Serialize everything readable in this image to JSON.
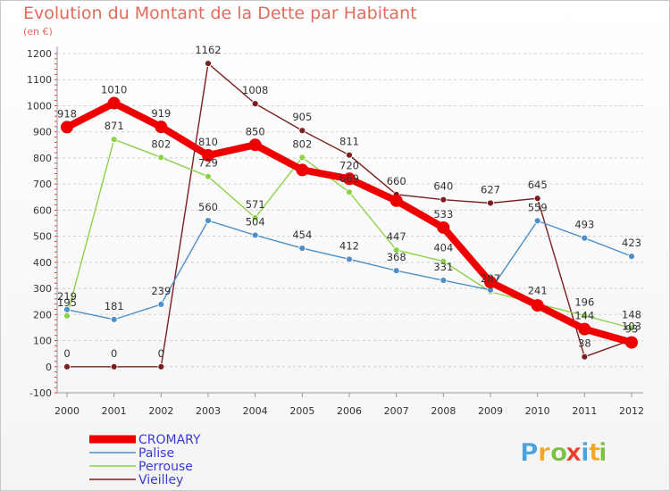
{
  "title": "Evolution du Montant de la Dette par Habitant",
  "subtitle": "(en €)",
  "brand": {
    "letters": [
      "P",
      "r",
      "o",
      "x",
      "i",
      "t",
      "i"
    ],
    "colors": [
      "#4aa3df",
      "#f5a623",
      "#7bc142",
      "#e8402a",
      "#4aa3df",
      "#f5a623",
      "#7bc142"
    ]
  },
  "chart_data": {
    "type": "line",
    "title": "Evolution du Montant de la Dette par Habitant",
    "subtitle": "(en €)",
    "x": [
      "2000",
      "2001",
      "2002",
      "2003",
      "2004",
      "2005",
      "2006",
      "2007",
      "2008",
      "2009",
      "2010",
      "2011",
      "2012"
    ],
    "ylim": [
      -100,
      1200
    ],
    "yticks": [
      "-100",
      "0",
      "100",
      "200",
      "300",
      "400",
      "500",
      "600",
      "700",
      "800",
      "900",
      "1000",
      "1100",
      "1200"
    ],
    "grid": "horizontal dashed",
    "legend_position": "bottom-left",
    "series": [
      {
        "name": "CROMARY",
        "color": "#ee0000",
        "values": [
          918,
          1010,
          919,
          810,
          850,
          754,
          720,
          636,
          533,
          324,
          235,
          144,
          93
        ]
      },
      {
        "name": "Palise",
        "color": "#4e8fc9",
        "values": [
          219,
          181,
          239,
          560,
          504,
          454,
          412,
          368,
          331,
          294,
          559,
          493,
          423
        ]
      },
      {
        "name": "Perrouse",
        "color": "#8ed24a",
        "values": [
          195,
          871,
          802,
          729,
          571,
          802,
          669,
          447,
          404,
          287,
          241,
          196,
          148
        ]
      },
      {
        "name": "Vieilley",
        "color": "#7a1f1f",
        "values": [
          0,
          0,
          0,
          1162,
          1008,
          905,
          811,
          660,
          640,
          627,
          645,
          38,
          103
        ]
      }
    ],
    "point_labels": {
      "CROMARY": [
        "918",
        "1010",
        "919",
        "810",
        "850",
        "",
        "720",
        "",
        "533",
        "",
        "",
        "144",
        "93"
      ],
      "Palise": [
        "219",
        "181",
        "239",
        "560",
        "504",
        "454",
        "412",
        "368",
        "331",
        "",
        "559",
        "493",
        "423"
      ],
      "Perrouse": [
        "195",
        "871",
        "802",
        "729",
        "571",
        "802",
        "669",
        "447",
        "404",
        "287",
        "241",
        "196",
        "148"
      ],
      "Vieilley": [
        "0",
        "0",
        "0",
        "1162",
        "1008",
        "905",
        "811",
        "660",
        "640",
        "627",
        "645",
        "38",
        "103"
      ]
    }
  }
}
